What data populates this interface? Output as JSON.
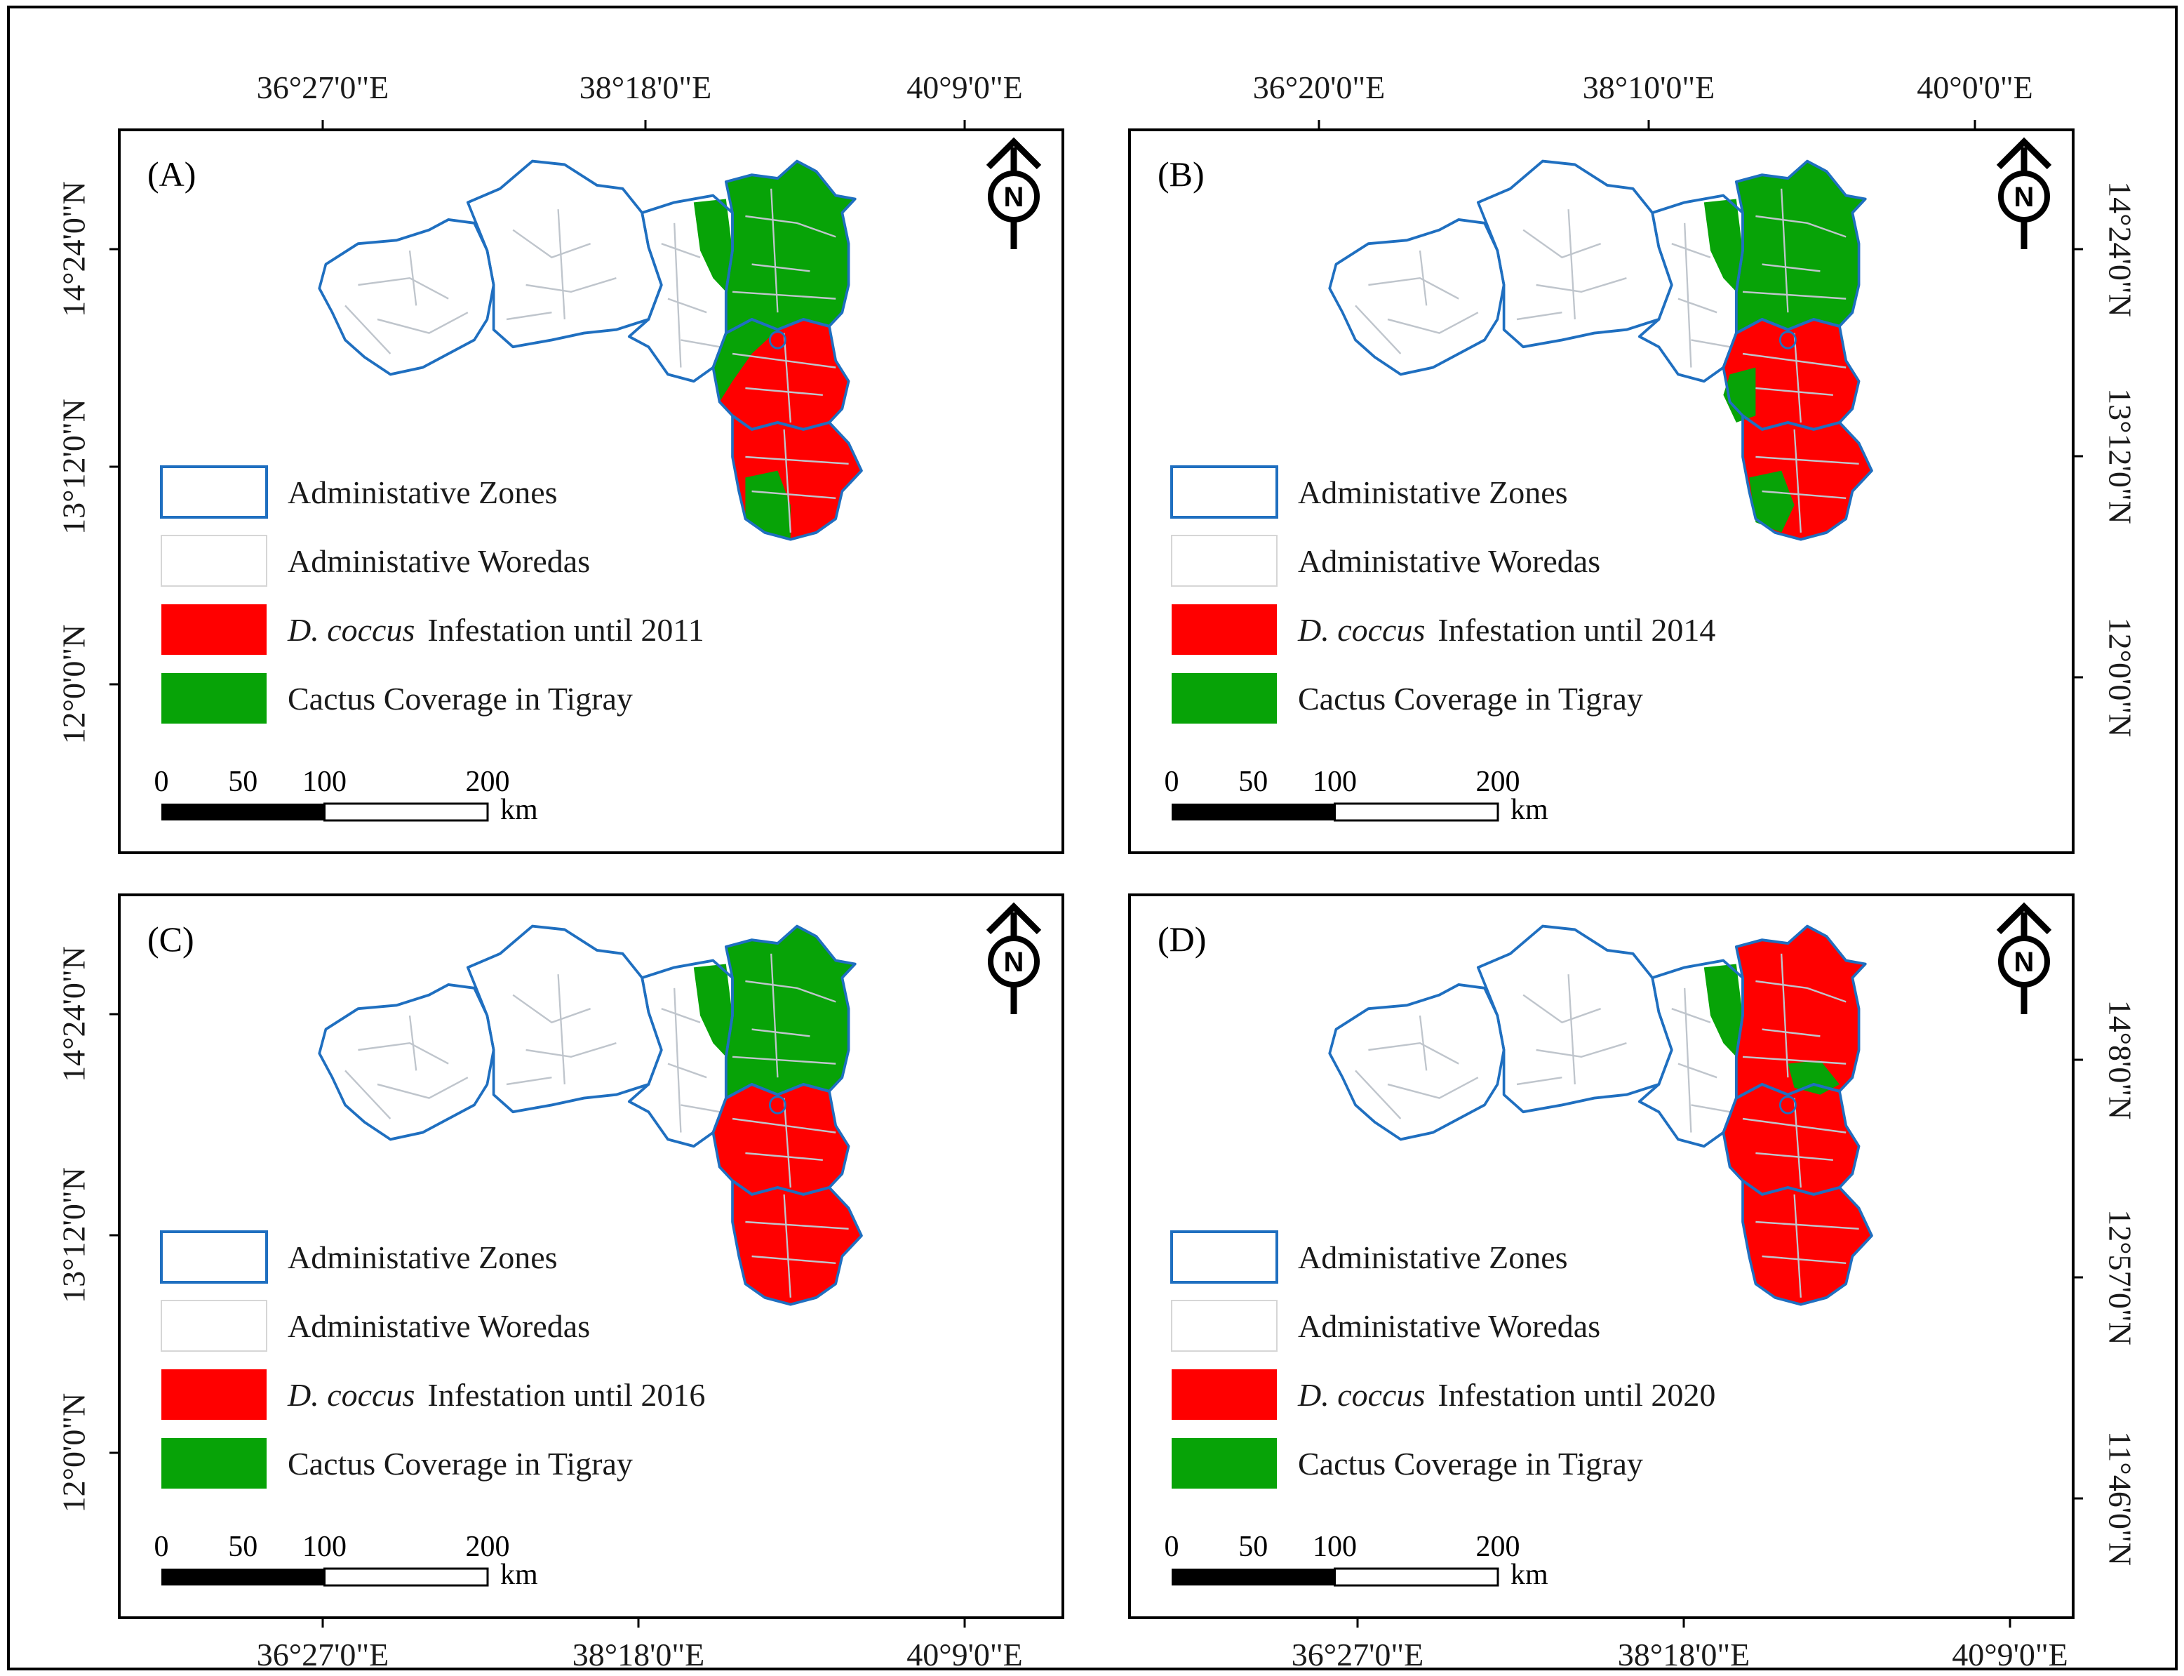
{
  "figure": {
    "colors": {
      "zone_border": "#1f6fc0",
      "woreda_border": "#bfc5cc",
      "infestation": "#ff0000",
      "cactus": "#07a307",
      "frame": "#000000"
    },
    "panels": [
      {
        "id": "A",
        "label": "(A)",
        "north_letter": "N",
        "top_lon_labels": [
          "36°27'0\"E",
          "38°18'0\"E",
          "40°9'0\"E"
        ],
        "bottom_lon_labels": [],
        "left_lat_labels": [
          "14°24'0\"N",
          "13°12'0\"N",
          "12°0'0\"N"
        ],
        "right_lat_labels": [],
        "legend": [
          {
            "swatch": "zone",
            "italic": "",
            "text": "Administative Zones"
          },
          {
            "swatch": "woreda",
            "italic": "",
            "text": "Administative Woredas"
          },
          {
            "swatch": "infestation",
            "italic": "D. coccus",
            "text": "Infestation until 2011"
          },
          {
            "swatch": "cactus",
            "italic": "",
            "text": "Cactus Coverage in Tigray"
          }
        ],
        "scale": {
          "ticks": [
            "0",
            "50",
            "100",
            "200"
          ],
          "unit": "km"
        }
      },
      {
        "id": "B",
        "label": "(B)",
        "north_letter": "N",
        "top_lon_labels": [
          "36°20'0\"E",
          "38°10'0\"E",
          "40°0'0\"E"
        ],
        "bottom_lon_labels": [],
        "left_lat_labels": [],
        "right_lat_labels": [
          "14°24'0\"N",
          "13°12'0\"N",
          "12°0'0\"N"
        ],
        "legend": [
          {
            "swatch": "zone",
            "italic": "",
            "text": "Administative Zones"
          },
          {
            "swatch": "woreda",
            "italic": "",
            "text": "Administative Woredas"
          },
          {
            "swatch": "infestation",
            "italic": "D. coccus",
            "text": "Infestation until 2014"
          },
          {
            "swatch": "cactus",
            "italic": "",
            "text": "Cactus Coverage in Tigray"
          }
        ],
        "scale": {
          "ticks": [
            "0",
            "50",
            "100",
            "200"
          ],
          "unit": "km"
        }
      },
      {
        "id": "C",
        "label": "(C)",
        "north_letter": "N",
        "top_lon_labels": [],
        "bottom_lon_labels": [
          "36°27'0\"E",
          "38°18'0\"E",
          "40°9'0\"E"
        ],
        "left_lat_labels": [
          "14°24'0\"N",
          "13°12'0\"N",
          "12°0'0\"N"
        ],
        "right_lat_labels": [],
        "legend": [
          {
            "swatch": "zone",
            "italic": "",
            "text": "Administative Zones"
          },
          {
            "swatch": "woreda",
            "italic": "",
            "text": "Administative Woredas"
          },
          {
            "swatch": "infestation",
            "italic": "D. coccus",
            "text": "Infestation until 2016"
          },
          {
            "swatch": "cactus",
            "italic": "",
            "text": "Cactus Coverage in Tigray"
          }
        ],
        "scale": {
          "ticks": [
            "0",
            "50",
            "100",
            "200"
          ],
          "unit": "km"
        }
      },
      {
        "id": "D",
        "label": "(D)",
        "north_letter": "N",
        "top_lon_labels": [],
        "bottom_lon_labels": [
          "36°27'0\"E",
          "38°18'0\"E",
          "40°9'0\"E"
        ],
        "left_lat_labels": [],
        "right_lat_labels": [
          "14°8'0\"N",
          "12°57'0\"N",
          "11°46'0\"N"
        ],
        "legend": [
          {
            "swatch": "zone",
            "italic": "",
            "text": "Administative Zones"
          },
          {
            "swatch": "woreda",
            "italic": "",
            "text": "Administative Woredas"
          },
          {
            "swatch": "infestation",
            "italic": "D. coccus",
            "text": "Infestation until 2020"
          },
          {
            "swatch": "cactus",
            "italic": "",
            "text": "Cactus Coverage in Tigray"
          }
        ],
        "scale": {
          "ticks": [
            "0",
            "50",
            "100",
            "200"
          ],
          "unit": "km"
        }
      }
    ]
  }
}
